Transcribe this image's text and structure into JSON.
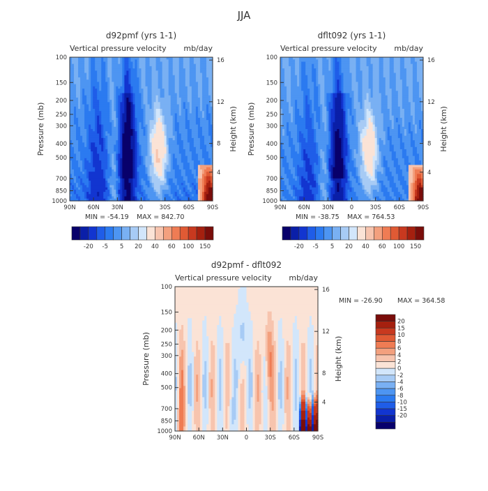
{
  "page": {
    "season_title": "JJA"
  },
  "palette_top": [
    "#08006b",
    "#0a1fa8",
    "#1235d0",
    "#1f5de8",
    "#2b7af0",
    "#4d95f2",
    "#79b0f3",
    "#a7cbf5",
    "#d2e6fb",
    "#fbe3d6",
    "#f7c4ae",
    "#f3a07e",
    "#ef7c54",
    "#e05a34",
    "#c8391f",
    "#a5200f",
    "#7a0d0a"
  ],
  "palette_diff": [
    "#08006b",
    "#0a1fa8",
    "#1235d0",
    "#1f5de8",
    "#2b7af0",
    "#4d95f2",
    "#79b0f3",
    "#a7cbf5",
    "#d2e6fb",
    "#fbe3d6",
    "#f7c4ae",
    "#f3a07e",
    "#ef7c54",
    "#e05a34",
    "#c8391f",
    "#a5200f",
    "#7a0d0a"
  ],
  "panels": [
    {
      "id": "d92pmf",
      "title": "d92pmf (yrs 1-1)",
      "left_title": "Vertical pressure velocity",
      "units": "mb/day",
      "min_label": "MIN = -54.19",
      "max_label": "MAX = 842.70"
    },
    {
      "id": "dflt092",
      "title": "dflt092 (yrs 1-1)",
      "left_title": "Vertical pressure velocity",
      "units": "mb/day",
      "min_label": "MIN = -38.75",
      "max_label": "MAX = 764.53"
    },
    {
      "id": "diff",
      "title": "d92pmf - dflt092",
      "left_title": "Vertical pressure velocity",
      "units": "mb/day",
      "min_label": "MIN = -26.90",
      "max_label": "MAX = 364.58"
    }
  ],
  "chart_data": [
    {
      "type": "heatmap",
      "title": "d92pmf (yrs 1-1)",
      "xlabel": "",
      "ylabel": "Pressure (mb)",
      "y2label": "Height (km)",
      "x_ticks": [
        "90N",
        "60N",
        "30N",
        "0",
        "30S",
        "60S",
        "90S"
      ],
      "y_ticks": [
        "100",
        "150",
        "200",
        "250",
        "300",
        "400",
        "500",
        "700",
        "850",
        "1000"
      ],
      "y2_ticks": [
        "16",
        "12",
        "8",
        "4"
      ],
      "colorbar_labels": [
        "-20",
        "-5",
        "5",
        "20",
        "40",
        "60",
        "100",
        "150"
      ],
      "min": -54.19,
      "max": 842.7
    },
    {
      "type": "heatmap",
      "title": "dflt092 (yrs 1-1)",
      "xlabel": "",
      "ylabel": "Pressure (mb)",
      "y2label": "Height (km)",
      "x_ticks": [
        "90N",
        "60N",
        "30N",
        "0",
        "30S",
        "60S",
        "90S"
      ],
      "y_ticks": [
        "100",
        "150",
        "200",
        "250",
        "300",
        "400",
        "500",
        "700",
        "850",
        "1000"
      ],
      "y2_ticks": [
        "16",
        "12",
        "8",
        "4"
      ],
      "colorbar_labels": [
        "-20",
        "-5",
        "5",
        "20",
        "40",
        "60",
        "100",
        "150"
      ],
      "min": -38.75,
      "max": 764.53
    },
    {
      "type": "heatmap",
      "title": "d92pmf - dflt092",
      "xlabel": "",
      "ylabel": "Pressure (mb)",
      "y2label": "Height (km)",
      "x_ticks": [
        "90N",
        "60N",
        "30N",
        "0",
        "30S",
        "60S",
        "90S"
      ],
      "y_ticks": [
        "100",
        "150",
        "200",
        "250",
        "300",
        "400",
        "500",
        "700",
        "850",
        "1000"
      ],
      "y2_ticks": [
        "16",
        "12",
        "8",
        "4"
      ],
      "colorbar_labels": [
        "20",
        "15",
        "10",
        "8",
        "6",
        "4",
        "2",
        "0",
        "-2",
        "-4",
        "-6",
        "-8",
        "-10",
        "-15",
        "-20"
      ],
      "min": -26.9,
      "max": 364.58
    }
  ]
}
